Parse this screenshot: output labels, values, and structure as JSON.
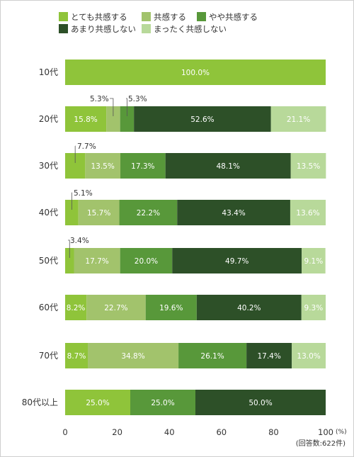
{
  "chart_data": {
    "type": "bar",
    "orientation": "horizontal",
    "stacked": true,
    "categories": [
      "10代",
      "20代",
      "30代",
      "40代",
      "50代",
      "60代",
      "70代",
      "80代以上"
    ],
    "series": [
      {
        "name": "とても共感する",
        "color": "#8fc43a",
        "values": [
          100.0,
          15.8,
          7.7,
          5.1,
          3.4,
          8.2,
          8.7,
          25.0
        ]
      },
      {
        "name": "共感する",
        "color": "#a2c36c",
        "values": [
          0,
          5.3,
          13.5,
          15.7,
          17.7,
          22.7,
          34.8,
          0
        ]
      },
      {
        "name": "やや共感する",
        "color": "#58983a",
        "values": [
          0,
          5.3,
          17.3,
          22.2,
          20.0,
          19.6,
          26.1,
          25.0
        ]
      },
      {
        "name": "あまり共感しない",
        "color": "#2d5028",
        "values": [
          0,
          52.6,
          48.1,
          43.4,
          49.7,
          40.2,
          17.4,
          50.0
        ]
      },
      {
        "name": "まったく共感しない",
        "color": "#b8d99a",
        "values": [
          0,
          21.1,
          13.5,
          13.6,
          9.1,
          9.3,
          13.0,
          0
        ]
      }
    ],
    "data_labels": [
      [
        "100.0%",
        "",
        "",
        "",
        ""
      ],
      [
        "15.8%",
        "5.3%",
        "5.3%",
        "52.6%",
        "21.1%"
      ],
      [
        "7.7%",
        "13.5%",
        "17.3%",
        "48.1%",
        "13.5%"
      ],
      [
        "5.1%",
        "15.7%",
        "22.2%",
        "43.4%",
        "13.6%"
      ],
      [
        "3.4%",
        "17.7%",
        "20.0%",
        "49.7%",
        "9.1%"
      ],
      [
        "8.2%",
        "22.7%",
        "19.6%",
        "40.2%",
        "9.3%"
      ],
      [
        "8.7%",
        "34.8%",
        "26.1%",
        "17.4%",
        "13.0%"
      ],
      [
        "25.0%",
        "",
        "25.0%",
        "50.0%",
        ""
      ]
    ],
    "x_ticks": [
      "0",
      "20",
      "40",
      "60",
      "80",
      "100"
    ],
    "xlim": [
      0,
      100
    ],
    "x_unit": "(%)",
    "footnote": "(回答数:622件)",
    "legend_position": "top-left",
    "grid": false
  }
}
